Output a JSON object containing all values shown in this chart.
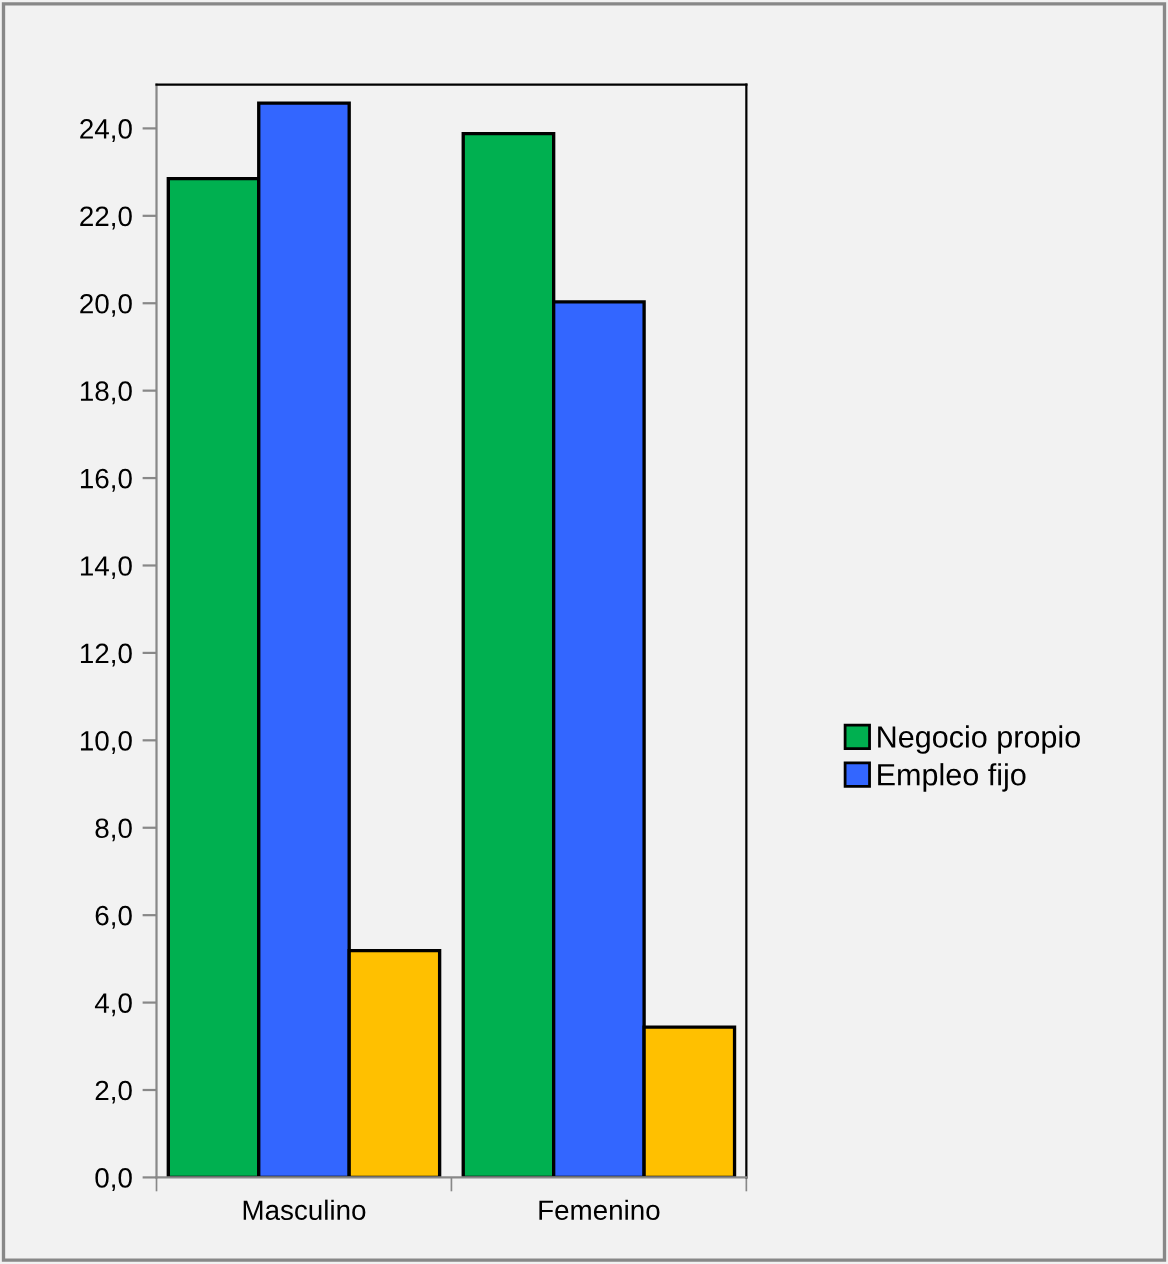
{
  "chart_data": {
    "type": "bar",
    "categories": [
      "Masculino",
      "Femenino"
    ],
    "series": [
      {
        "name": "Negocio propio",
        "color": "#00b050",
        "values": [
          22.85,
          23.88
        ]
      },
      {
        "name": "Empleo fijo",
        "color": "#3366ff",
        "values": [
          24.58,
          20.03
        ]
      },
      {
        "color": "#ffc000",
        "values": [
          5.19,
          3.44
        ]
      }
    ],
    "ylim": [
      0,
      25
    ],
    "yticks": [
      {
        "value": 0,
        "label": "0,0"
      },
      {
        "value": 2,
        "label": "2,0"
      },
      {
        "value": 4,
        "label": "4,0"
      },
      {
        "value": 6,
        "label": "6,0"
      },
      {
        "value": 8,
        "label": "8,0"
      },
      {
        "value": 10,
        "label": "10,0"
      },
      {
        "value": 12,
        "label": "12,0"
      },
      {
        "value": 14,
        "label": "14,0"
      },
      {
        "value": 16,
        "label": "16,0"
      },
      {
        "value": 18,
        "label": "18,0"
      },
      {
        "value": 20,
        "label": "20,0"
      },
      {
        "value": 22,
        "label": "22,0"
      },
      {
        "value": 24,
        "label": "24,0"
      }
    ],
    "grid": false,
    "legend": "right"
  }
}
